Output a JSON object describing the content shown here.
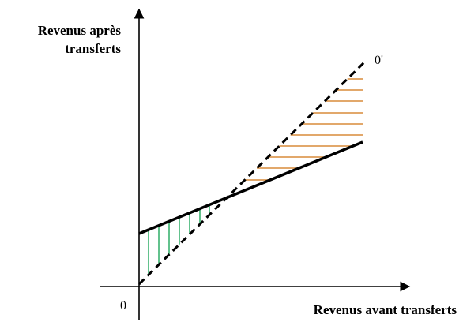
{
  "diagram": {
    "y_axis_label_line1": "Revenus après",
    "y_axis_label_line2": "transferts",
    "x_axis_label": "Revenus avant transferts",
    "origin_label": "0",
    "diagonal_end_label": "0'"
  },
  "colors": {
    "axes": "#000000",
    "gain_hatch": "#3cb371",
    "loss_hatch": "#d98c3a"
  }
}
